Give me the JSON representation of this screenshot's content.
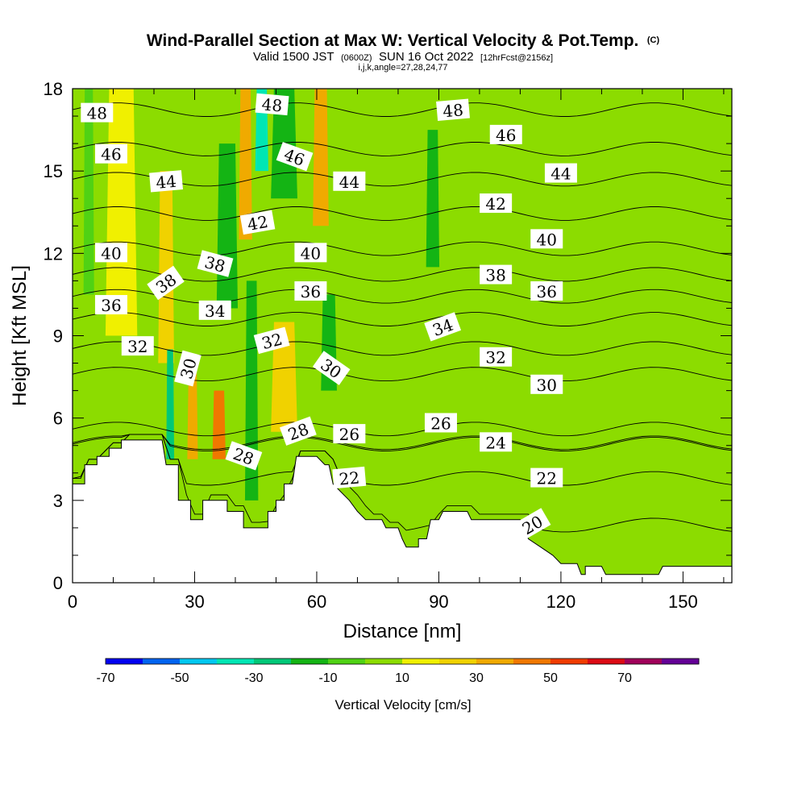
{
  "title": {
    "main": "Wind-Parallel Section at Max W: Vertical Velocity & Pot.Temp.",
    "copyright": "(C)",
    "valid_prefix": "Valid 1500 JST",
    "valid_utc": "(0600Z)",
    "valid_date": "SUN 16 Oct 2022",
    "fcst": "[12hrFcst@2156z]",
    "params": "i,j,k,angle=27,28,24,77"
  },
  "chart_data": {
    "type": "heatmap",
    "xlabel": "Distance [nm]",
    "ylabel": "Height [Kft MSL]",
    "xlim": [
      0,
      162
    ],
    "ylim": [
      0,
      18
    ],
    "x_ticks": [
      0,
      30,
      60,
      90,
      120,
      150
    ],
    "y_ticks": [
      0,
      3,
      6,
      9,
      12,
      15,
      18
    ],
    "grid": false,
    "colorbar": {
      "title": "Vertical Velocity [cm/s]",
      "tick_labels": [
        "-70",
        "-50",
        "-30",
        "-10",
        "10",
        "30",
        "50",
        "70"
      ],
      "levels": [
        -70,
        -60,
        -50,
        -40,
        -30,
        -20,
        -10,
        0,
        10,
        20,
        30,
        40,
        50,
        60,
        70,
        80
      ],
      "colors": [
        "#0000f0",
        "#0064f0",
        "#00c8f0",
        "#00e6b4",
        "#00c878",
        "#14b414",
        "#50d214",
        "#8cdc00",
        "#f0f000",
        "#f0d200",
        "#f0aa00",
        "#f07800",
        "#f03c00",
        "#dc0a14",
        "#a0005a",
        "#640096"
      ]
    },
    "vertical_velocity_bands": [
      {
        "x_center": 4,
        "width": 2,
        "top": 18,
        "bottom": 10.5,
        "value": -10
      },
      {
        "x_center": 12,
        "width": 6,
        "top": 18,
        "bottom": 9,
        "value": 10
      },
      {
        "x_center": 23,
        "width": 3,
        "top": 15,
        "bottom": 8,
        "value": 20
      },
      {
        "x_center": 24,
        "width": 1.5,
        "top": 8.5,
        "bottom": 4.5,
        "value": -30
      },
      {
        "x_center": 29.5,
        "width": 2,
        "top": 7.8,
        "bottom": 4.5,
        "value": 30
      },
      {
        "x_center": 36,
        "width": 2.5,
        "top": 7,
        "bottom": 4.5,
        "value": 40
      },
      {
        "x_center": 38,
        "width": 4,
        "top": 16,
        "bottom": 10,
        "value": -20
      },
      {
        "x_center": 42.5,
        "width": 2.5,
        "top": 18,
        "bottom": 12.5,
        "value": 30
      },
      {
        "x_center": 46.5,
        "width": 2.5,
        "top": 18,
        "bottom": 15,
        "value": -40
      },
      {
        "x_center": 44,
        "width": 2.5,
        "top": 11,
        "bottom": 3,
        "value": -20
      },
      {
        "x_center": 52,
        "width": 5,
        "top": 18,
        "bottom": 14,
        "value": -20
      },
      {
        "x_center": 52,
        "width": 5,
        "top": 9.5,
        "bottom": 5.5,
        "value": 20
      },
      {
        "x_center": 61,
        "width": 3,
        "top": 18,
        "bottom": 13,
        "value": 30
      },
      {
        "x_center": 63,
        "width": 3,
        "top": 10.5,
        "bottom": 7,
        "value": -20
      },
      {
        "x_center": 77,
        "width": 2,
        "top": 18,
        "bottom": 12,
        "value": 0
      },
      {
        "x_center": 88.5,
        "width": 2.5,
        "top": 16.5,
        "bottom": 11.5,
        "value": -20
      },
      {
        "x_center": 104,
        "width": 2.5,
        "top": 18,
        "bottom": 11,
        "value": 0
      },
      {
        "x_center": 115,
        "width": 3,
        "top": 18,
        "bottom": 12,
        "value": 0
      },
      {
        "x_center": 123,
        "width": 3,
        "top": 12,
        "bottom": 7,
        "value": 0
      },
      {
        "x_center": 144,
        "width": 4,
        "top": 18,
        "bottom": 8,
        "value": 0
      }
    ],
    "isentropes": {
      "labels": [
        {
          "text": "48",
          "x": 6,
          "y": 17.1,
          "angle": 0
        },
        {
          "text": "46",
          "x": 9.5,
          "y": 15.6,
          "angle": 0
        },
        {
          "text": "44",
          "x": 23,
          "y": 14.6,
          "angle": -5
        },
        {
          "text": "40",
          "x": 9.5,
          "y": 12,
          "angle": 0
        },
        {
          "text": "38",
          "x": 23,
          "y": 10.9,
          "angle": -35
        },
        {
          "text": "36",
          "x": 9.5,
          "y": 10.1,
          "angle": 0
        },
        {
          "text": "32",
          "x": 16,
          "y": 8.6,
          "angle": 0
        },
        {
          "text": "30",
          "x": 28.5,
          "y": 7.8,
          "angle": -75
        },
        {
          "text": "38",
          "x": 35,
          "y": 11.6,
          "angle": 15
        },
        {
          "text": "34",
          "x": 35,
          "y": 9.9,
          "angle": 0
        },
        {
          "text": "48",
          "x": 49,
          "y": 17.4,
          "angle": 5
        },
        {
          "text": "46",
          "x": 54.5,
          "y": 15.5,
          "angle": 20
        },
        {
          "text": "42",
          "x": 45.5,
          "y": 13.1,
          "angle": -10
        },
        {
          "text": "40",
          "x": 58.5,
          "y": 12,
          "angle": 0
        },
        {
          "text": "36",
          "x": 58.5,
          "y": 10.6,
          "angle": 0
        },
        {
          "text": "32",
          "x": 49,
          "y": 8.8,
          "angle": -15
        },
        {
          "text": "30",
          "x": 63.5,
          "y": 7.8,
          "angle": 35
        },
        {
          "text": "28",
          "x": 42,
          "y": 4.6,
          "angle": 20
        },
        {
          "text": "28",
          "x": 55.5,
          "y": 5.5,
          "angle": -20
        },
        {
          "text": "26",
          "x": 68,
          "y": 5.4,
          "angle": 0
        },
        {
          "text": "22",
          "x": 68,
          "y": 3.8,
          "angle": -5
        },
        {
          "text": "44",
          "x": 68,
          "y": 14.6,
          "angle": 0
        },
        {
          "text": "48",
          "x": 93.5,
          "y": 17.2,
          "angle": -5
        },
        {
          "text": "34",
          "x": 91,
          "y": 9.3,
          "angle": -20
        },
        {
          "text": "26",
          "x": 90.5,
          "y": 5.8,
          "angle": 0
        },
        {
          "text": "46",
          "x": 106.5,
          "y": 16.3,
          "angle": 0
        },
        {
          "text": "42",
          "x": 104,
          "y": 13.8,
          "angle": 0
        },
        {
          "text": "38",
          "x": 104,
          "y": 11.2,
          "angle": 0
        },
        {
          "text": "32",
          "x": 104,
          "y": 8.2,
          "angle": 0
        },
        {
          "text": "24",
          "x": 104,
          "y": 5.1,
          "angle": 0
        },
        {
          "text": "44",
          "x": 120,
          "y": 14.9,
          "angle": 0
        },
        {
          "text": "40",
          "x": 116.5,
          "y": 12.5,
          "angle": 0
        },
        {
          "text": "36",
          "x": 116.5,
          "y": 10.6,
          "angle": 0
        },
        {
          "text": "30",
          "x": 116.5,
          "y": 7.2,
          "angle": 0
        },
        {
          "text": "22",
          "x": 116.5,
          "y": 3.8,
          "angle": 0
        },
        {
          "text": "20",
          "x": 113,
          "y": 2.1,
          "angle": -30
        }
      ]
    },
    "terrain_profile": [
      [
        0,
        3.6
      ],
      [
        3,
        3.6
      ],
      [
        3,
        4.3
      ],
      [
        6,
        4.3
      ],
      [
        6,
        4.6
      ],
      [
        9,
        4.6
      ],
      [
        9,
        4.9
      ],
      [
        12,
        4.9
      ],
      [
        12,
        5.2
      ],
      [
        20,
        5.2
      ],
      [
        22,
        5.2
      ],
      [
        23,
        4.3
      ],
      [
        26,
        4.3
      ],
      [
        26,
        3
      ],
      [
        29,
        3
      ],
      [
        29,
        2.3
      ],
      [
        32,
        2.3
      ],
      [
        32,
        3
      ],
      [
        38,
        3
      ],
      [
        38,
        2.6
      ],
      [
        42,
        2.6
      ],
      [
        42,
        2
      ],
      [
        48,
        2
      ],
      [
        48,
        2.6
      ],
      [
        50,
        2.6
      ],
      [
        50,
        3
      ],
      [
        52,
        3
      ],
      [
        52,
        3.6
      ],
      [
        54,
        3.6
      ],
      [
        55,
        4.6
      ],
      [
        60,
        4.6
      ],
      [
        62,
        4.3
      ],
      [
        63,
        4.3
      ],
      [
        64,
        3.6
      ],
      [
        66,
        3.3
      ],
      [
        68,
        3
      ],
      [
        70,
        2.6
      ],
      [
        72,
        2.3
      ],
      [
        76,
        2.3
      ],
      [
        77,
        2
      ],
      [
        80,
        2
      ],
      [
        81,
        1.6
      ],
      [
        82,
        1.3
      ],
      [
        85,
        1.3
      ],
      [
        85,
        1.6
      ],
      [
        87,
        1.6
      ],
      [
        88,
        2.3
      ],
      [
        90,
        2.3
      ],
      [
        91,
        2.6
      ],
      [
        97,
        2.6
      ],
      [
        98,
        2.3
      ],
      [
        110,
        2.3
      ],
      [
        112,
        1.6
      ],
      [
        115,
        1.3
      ],
      [
        118,
        1
      ],
      [
        120,
        0.7
      ],
      [
        124,
        0.7
      ],
      [
        125,
        0.3
      ],
      [
        126,
        0.3
      ],
      [
        126,
        0.6
      ],
      [
        130,
        0.6
      ],
      [
        131,
        0.3
      ],
      [
        144,
        0.3
      ],
      [
        145,
        0.6
      ],
      [
        150,
        0.6
      ],
      [
        156,
        0.6
      ],
      [
        158,
        0.6
      ],
      [
        162,
        0.6
      ]
    ]
  }
}
